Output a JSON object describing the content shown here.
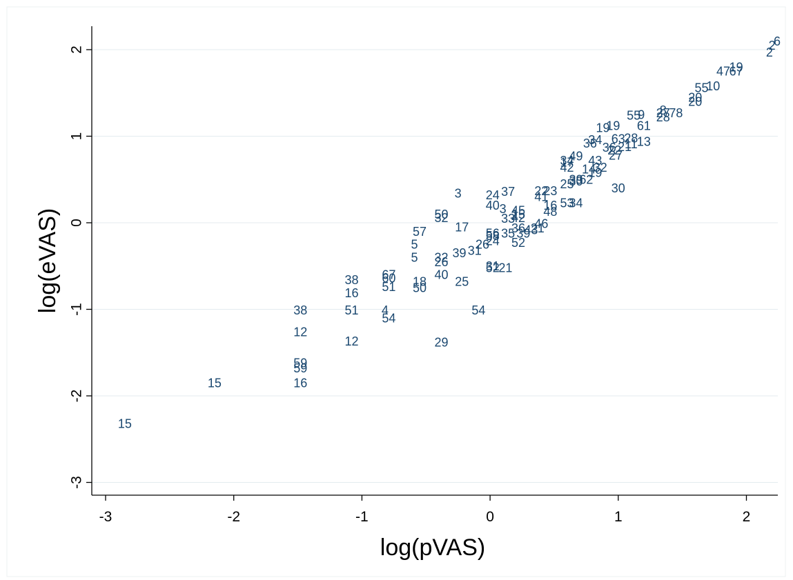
{
  "chart_data": {
    "type": "scatter",
    "title": "",
    "xlabel": "log(pVAS)",
    "ylabel": "log(eVAS)",
    "xlim": [
      -3.05,
      2.25
    ],
    "ylim": [
      -3.1,
      2.25
    ],
    "xticks": [
      -3,
      -2,
      -1,
      0,
      1,
      2
    ],
    "yticks": [
      -3,
      -2,
      -1,
      0,
      1,
      2
    ],
    "x_tick_labels": [
      "-3",
      "-2",
      "-1",
      "0",
      "1",
      "2"
    ],
    "y_tick_labels": [
      "-3",
      "-2",
      "-1",
      "0",
      "1",
      "2"
    ],
    "grid": "horizontal",
    "legend": "none",
    "marker": "label",
    "color": "#1a476f",
    "points": [
      {
        "label": "15",
        "x": -2.85,
        "y": -2.32
      },
      {
        "label": "15",
        "x": -2.15,
        "y": -1.85
      },
      {
        "label": "16",
        "x": -1.48,
        "y": -1.85
      },
      {
        "label": "59",
        "x": -1.48,
        "y": -1.62
      },
      {
        "label": "59",
        "x": -1.48,
        "y": -1.68
      },
      {
        "label": "12",
        "x": -1.48,
        "y": -1.26
      },
      {
        "label": "38",
        "x": -1.48,
        "y": -1.01
      },
      {
        "label": "12",
        "x": -1.08,
        "y": -1.37
      },
      {
        "label": "51",
        "x": -1.08,
        "y": -1.01
      },
      {
        "label": "16",
        "x": -1.08,
        "y": -0.81
      },
      {
        "label": "38",
        "x": -1.08,
        "y": -0.66
      },
      {
        "label": "4",
        "x": -0.82,
        "y": -1.01
      },
      {
        "label": "54",
        "x": -0.79,
        "y": -1.1
      },
      {
        "label": "67",
        "x": -0.79,
        "y": -0.6
      },
      {
        "label": "60",
        "x": -0.79,
        "y": -0.64
      },
      {
        "label": "51",
        "x": -0.79,
        "y": -0.74
      },
      {
        "label": "18",
        "x": -0.55,
        "y": -0.68
      },
      {
        "label": "50",
        "x": -0.55,
        "y": -0.75
      },
      {
        "label": "57",
        "x": -0.55,
        "y": -0.1
      },
      {
        "label": "5",
        "x": -0.59,
        "y": -0.25
      },
      {
        "label": "5",
        "x": -0.59,
        "y": -0.4
      },
      {
        "label": "29",
        "x": -0.38,
        "y": -1.38
      },
      {
        "label": "40",
        "x": -0.38,
        "y": -0.6
      },
      {
        "label": "32",
        "x": -0.38,
        "y": -0.4
      },
      {
        "label": "26",
        "x": -0.38,
        "y": -0.45
      },
      {
        "label": "50",
        "x": -0.38,
        "y": 0.1
      },
      {
        "label": "32",
        "x": -0.38,
        "y": 0.06
      },
      {
        "label": "25",
        "x": -0.22,
        "y": -0.68
      },
      {
        "label": "3",
        "x": -0.25,
        "y": 0.34
      },
      {
        "label": "17",
        "x": -0.22,
        "y": -0.05
      },
      {
        "label": "39",
        "x": -0.24,
        "y": -0.35
      },
      {
        "label": "31",
        "x": -0.12,
        "y": -0.32
      },
      {
        "label": "26",
        "x": -0.06,
        "y": -0.25
      },
      {
        "label": "54",
        "x": -0.09,
        "y": -1.01
      },
      {
        "label": "21",
        "x": 0.12,
        "y": -0.52
      },
      {
        "label": "31",
        "x": 0.02,
        "y": -0.5
      },
      {
        "label": "52",
        "x": 0.02,
        "y": -0.52
      },
      {
        "label": "24",
        "x": 0.02,
        "y": -0.21
      },
      {
        "label": "56",
        "x": 0.02,
        "y": -0.12
      },
      {
        "label": "58",
        "x": 0.02,
        "y": -0.15
      },
      {
        "label": "40",
        "x": 0.02,
        "y": 0.2
      },
      {
        "label": "24",
        "x": 0.02,
        "y": 0.32
      },
      {
        "label": "37",
        "x": 0.14,
        "y": 0.36
      },
      {
        "label": "3",
        "x": 0.1,
        "y": 0.16
      },
      {
        "label": "33",
        "x": 0.14,
        "y": 0.05
      },
      {
        "label": "35",
        "x": 0.14,
        "y": -0.12
      },
      {
        "label": "52",
        "x": 0.22,
        "y": -0.23
      },
      {
        "label": "45",
        "x": 0.22,
        "y": 0.14
      },
      {
        "label": "15",
        "x": 0.22,
        "y": 0.1
      },
      {
        "label": "42",
        "x": 0.22,
        "y": 0.06
      },
      {
        "label": "36",
        "x": 0.22,
        "y": -0.06
      },
      {
        "label": "39",
        "x": 0.26,
        "y": -0.12
      },
      {
        "label": "43",
        "x": 0.32,
        "y": -0.08
      },
      {
        "label": "21",
        "x": 0.37,
        "y": -0.06
      },
      {
        "label": "46",
        "x": 0.4,
        "y": -0.01
      },
      {
        "label": "48",
        "x": 0.47,
        "y": 0.13
      },
      {
        "label": "16",
        "x": 0.47,
        "y": 0.2
      },
      {
        "label": "41",
        "x": 0.4,
        "y": 0.3
      },
      {
        "label": "22",
        "x": 0.4,
        "y": 0.37
      },
      {
        "label": "23",
        "x": 0.47,
        "y": 0.37
      },
      {
        "label": "53",
        "x": 0.6,
        "y": 0.23
      },
      {
        "label": "34",
        "x": 0.67,
        "y": 0.23
      },
      {
        "label": "30",
        "x": 1.0,
        "y": 0.4
      },
      {
        "label": "25",
        "x": 0.6,
        "y": 0.45
      },
      {
        "label": "39",
        "x": 0.67,
        "y": 0.5
      },
      {
        "label": "30",
        "x": 0.67,
        "y": 0.48
      },
      {
        "label": "62",
        "x": 0.75,
        "y": 0.5
      },
      {
        "label": "19",
        "x": 0.82,
        "y": 0.58
      },
      {
        "label": "14",
        "x": 0.77,
        "y": 0.62
      },
      {
        "label": "32",
        "x": 0.86,
        "y": 0.64
      },
      {
        "label": "43",
        "x": 0.82,
        "y": 0.72
      },
      {
        "label": "42",
        "x": 0.6,
        "y": 0.64
      },
      {
        "label": "17",
        "x": 0.6,
        "y": 0.7
      },
      {
        "label": "34",
        "x": 0.6,
        "y": 0.72
      },
      {
        "label": "49",
        "x": 0.67,
        "y": 0.77
      },
      {
        "label": "36",
        "x": 0.78,
        "y": 0.92
      },
      {
        "label": "34",
        "x": 0.82,
        "y": 0.96
      },
      {
        "label": "36",
        "x": 0.93,
        "y": 0.87
      },
      {
        "label": "22",
        "x": 0.97,
        "y": 0.84
      },
      {
        "label": "21",
        "x": 1.05,
        "y": 0.88
      },
      {
        "label": "27",
        "x": 0.98,
        "y": 0.78
      },
      {
        "label": "11",
        "x": 1.1,
        "y": 0.91
      },
      {
        "label": "13",
        "x": 1.2,
        "y": 0.94
      },
      {
        "label": "63",
        "x": 1.0,
        "y": 0.97
      },
      {
        "label": "28",
        "x": 1.1,
        "y": 0.98
      },
      {
        "label": "19",
        "x": 0.88,
        "y": 1.1
      },
      {
        "label": "19",
        "x": 0.96,
        "y": 1.12
      },
      {
        "label": "61",
        "x": 1.2,
        "y": 1.12
      },
      {
        "label": "55",
        "x": 1.12,
        "y": 1.24
      },
      {
        "label": "9",
        "x": 1.18,
        "y": 1.25
      },
      {
        "label": "27",
        "x": 1.35,
        "y": 1.27
      },
      {
        "label": "8",
        "x": 1.35,
        "y": 1.3
      },
      {
        "label": "28",
        "x": 1.35,
        "y": 1.22
      },
      {
        "label": "78",
        "x": 1.45,
        "y": 1.27
      },
      {
        "label": "20",
        "x": 1.6,
        "y": 1.4
      },
      {
        "label": "20",
        "x": 1.6,
        "y": 1.45
      },
      {
        "label": "55",
        "x": 1.65,
        "y": 1.56
      },
      {
        "label": "10",
        "x": 1.74,
        "y": 1.58
      },
      {
        "label": "47",
        "x": 1.82,
        "y": 1.75
      },
      {
        "label": "67",
        "x": 1.92,
        "y": 1.75
      },
      {
        "label": "19",
        "x": 1.92,
        "y": 1.8
      },
      {
        "label": "2",
        "x": 2.18,
        "y": 1.97
      },
      {
        "label": "2",
        "x": 2.2,
        "y": 2.05
      },
      {
        "label": "6",
        "x": 2.24,
        "y": 2.1
      }
    ]
  }
}
